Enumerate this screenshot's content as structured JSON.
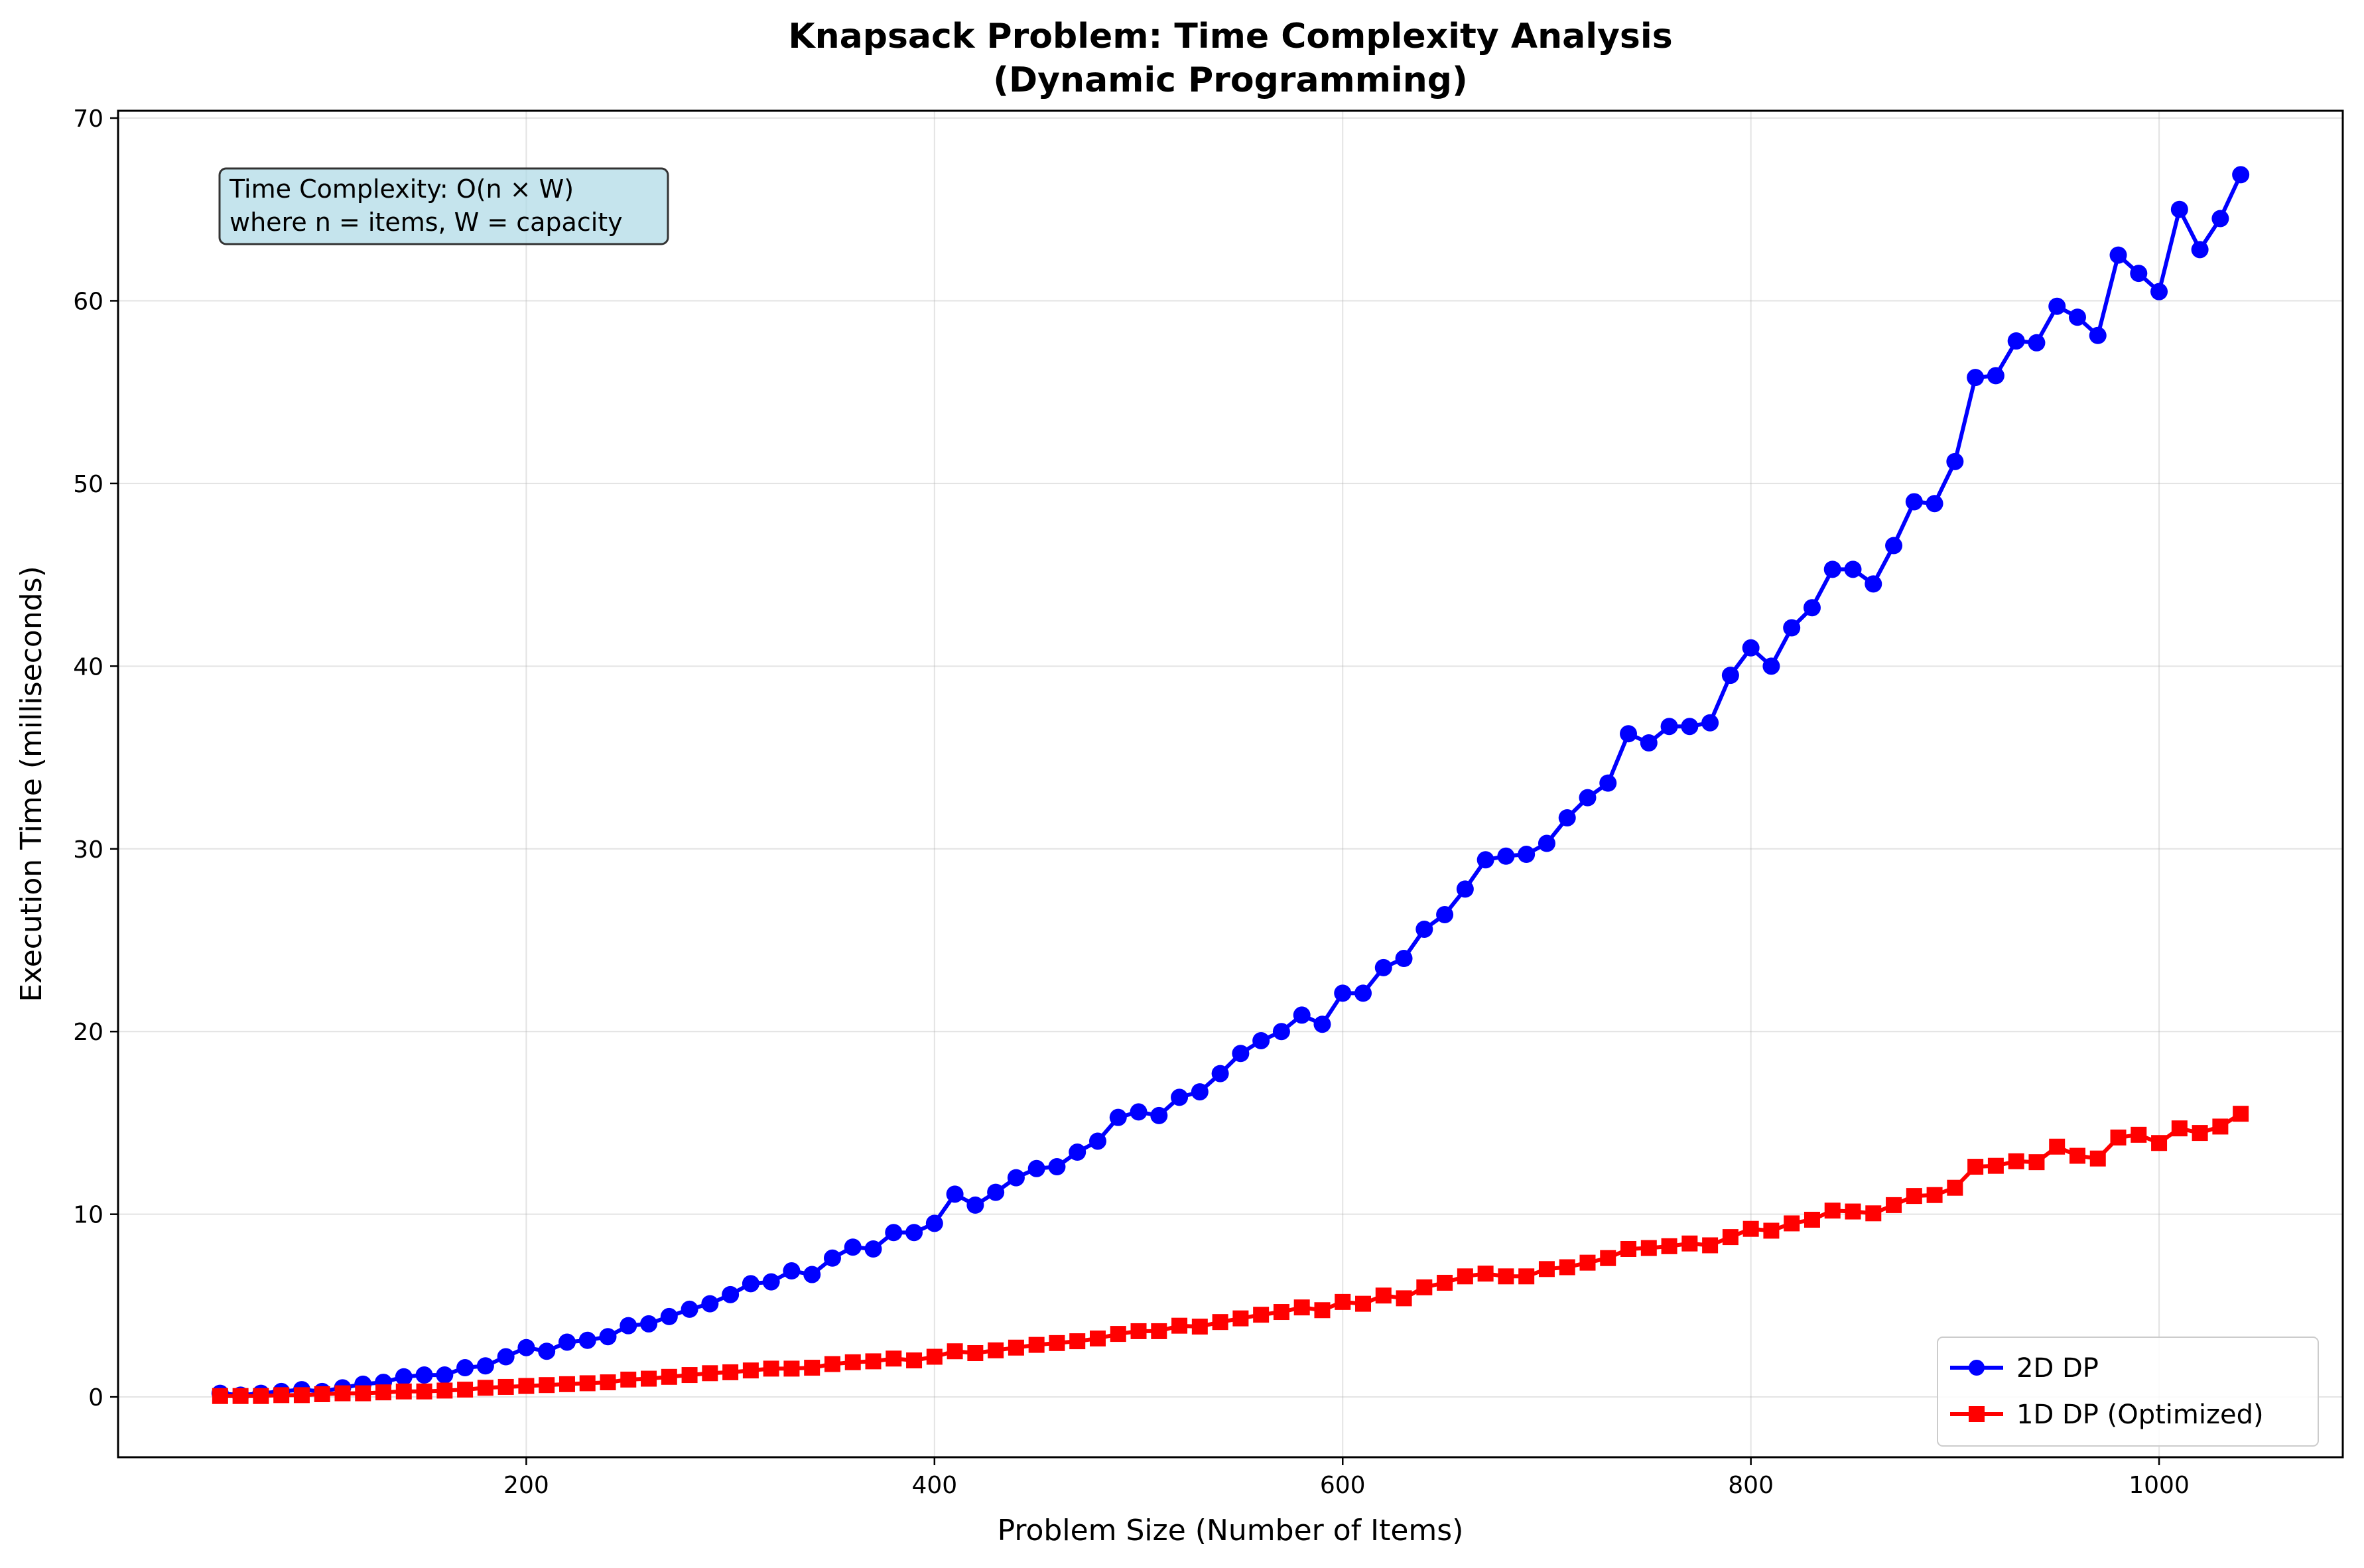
{
  "chart_data": {
    "type": "line",
    "title": "Knapsack Problem: Time Complexity Analysis",
    "subtitle": "(Dynamic Programming)",
    "xlabel": "Problem Size (Number of Items)",
    "ylabel": "Execution Time (milliseconds)",
    "xlim": [
      0,
      1090
    ],
    "ylim": [
      -3.3,
      70.4
    ],
    "x_ticks": [
      200,
      400,
      600,
      800,
      1000
    ],
    "y_ticks": [
      0,
      10,
      20,
      30,
      40,
      50,
      60,
      70
    ],
    "grid": true,
    "legend_position": "lower-right",
    "annotation": [
      "Time Complexity: O(n × W)",
      "where n = items, W = capacity"
    ],
    "x": [
      50,
      60,
      70,
      80,
      90,
      100,
      110,
      120,
      130,
      140,
      150,
      160,
      170,
      180,
      190,
      200,
      210,
      220,
      230,
      240,
      250,
      260,
      270,
      280,
      290,
      300,
      310,
      320,
      330,
      340,
      350,
      360,
      370,
      380,
      390,
      400,
      410,
      420,
      430,
      440,
      450,
      460,
      470,
      480,
      490,
      500,
      510,
      520,
      530,
      540,
      550,
      560,
      570,
      580,
      590,
      600,
      610,
      620,
      630,
      640,
      650,
      660,
      670,
      680,
      690,
      700,
      710,
      720,
      730,
      740,
      750,
      760,
      770,
      780,
      790,
      800,
      810,
      820,
      830,
      840,
      850,
      860,
      870,
      880,
      890,
      900,
      910,
      920,
      930,
      940,
      950,
      960,
      970,
      980,
      990,
      1000,
      1010,
      1020,
      1030,
      1040
    ],
    "series": [
      {
        "name": "2D DP",
        "color": "#0000ff",
        "marker": "circle",
        "values": [
          0.2,
          0.1,
          0.2,
          0.3,
          0.4,
          0.3,
          0.5,
          0.7,
          0.8,
          1.1,
          1.2,
          1.2,
          1.6,
          1.7,
          2.2,
          2.7,
          2.5,
          3.0,
          3.1,
          3.3,
          3.9,
          4.0,
          4.4,
          4.8,
          5.1,
          5.6,
          6.2,
          6.3,
          6.9,
          6.7,
          7.6,
          8.2,
          8.1,
          9.0,
          9.0,
          9.5,
          11.1,
          10.5,
          11.2,
          12.0,
          12.5,
          12.6,
          13.4,
          14.0,
          15.3,
          15.6,
          15.4,
          16.4,
          16.7,
          17.7,
          18.8,
          19.5,
          20.0,
          20.9,
          20.4,
          22.1,
          22.1,
          23.5,
          24.0,
          25.6,
          26.4,
          27.8,
          29.4,
          29.6,
          29.7,
          30.3,
          31.7,
          32.8,
          33.6,
          36.3,
          35.8,
          36.7,
          36.7,
          36.9,
          39.5,
          41.0,
          40.0,
          42.1,
          43.2,
          45.3,
          45.3,
          44.5,
          46.6,
          49.0,
          48.9,
          51.2,
          55.8,
          55.9,
          57.8,
          57.7,
          59.7,
          59.1,
          58.1,
          62.5,
          61.5,
          60.5,
          65.0,
          62.8,
          64.5,
          66.9
        ]
      },
      {
        "name": "1D DP (Optimized)",
        "color": "#ff0000",
        "marker": "square",
        "values": [
          0.05,
          0.05,
          0.05,
          0.1,
          0.1,
          0.15,
          0.2,
          0.2,
          0.25,
          0.3,
          0.3,
          0.35,
          0.4,
          0.5,
          0.55,
          0.6,
          0.65,
          0.7,
          0.75,
          0.8,
          0.95,
          1.0,
          1.1,
          1.2,
          1.3,
          1.35,
          1.45,
          1.55,
          1.55,
          1.6,
          1.8,
          1.9,
          1.95,
          2.1,
          2.0,
          2.2,
          2.5,
          2.4,
          2.55,
          2.7,
          2.85,
          2.95,
          3.05,
          3.2,
          3.45,
          3.6,
          3.6,
          3.9,
          3.85,
          4.1,
          4.3,
          4.5,
          4.65,
          4.9,
          4.75,
          5.2,
          5.1,
          5.55,
          5.4,
          6.0,
          6.25,
          6.6,
          6.75,
          6.6,
          6.6,
          7.0,
          7.1,
          7.35,
          7.6,
          8.1,
          8.15,
          8.25,
          8.4,
          8.3,
          8.75,
          9.2,
          9.1,
          9.5,
          9.7,
          10.2,
          10.15,
          10.05,
          10.5,
          11.0,
          11.05,
          11.45,
          12.6,
          12.65,
          12.9,
          12.85,
          13.7,
          13.2,
          13.05,
          14.2,
          14.35,
          13.9,
          14.7,
          14.45,
          14.8,
          15.5
        ]
      }
    ]
  }
}
